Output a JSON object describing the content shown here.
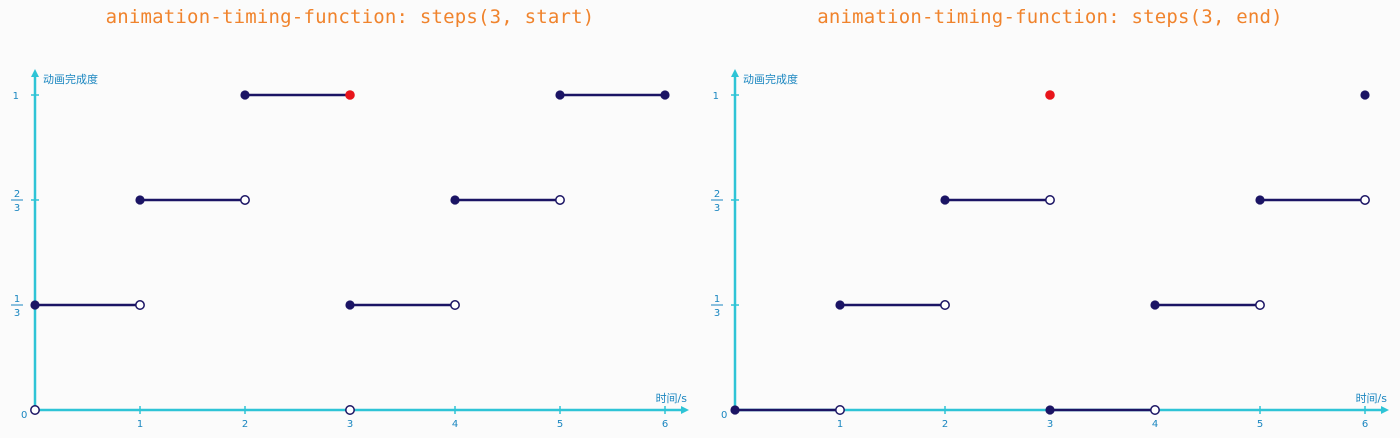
{
  "chart_data": [
    {
      "type": "line",
      "title": "animation-timing-function: steps(3, start)",
      "xlabel": "时间/s",
      "ylabel": "动画完成度",
      "xlim": [
        0,
        6
      ],
      "ylim": [
        0,
        1
      ],
      "x_ticks": [
        "1",
        "2",
        "3",
        "4",
        "5",
        "6"
      ],
      "y_ticks": [
        {
          "num": "1",
          "den": "3",
          "value": 0.3333
        },
        {
          "num": "2",
          "den": "3",
          "value": 0.6667
        },
        {
          "num": "",
          "den": "",
          "label": "1",
          "value": 1
        }
      ],
      "origin_label": "0",
      "segments": [
        {
          "x0": 0,
          "x1": 1,
          "y": 0.3333
        },
        {
          "x0": 1,
          "x1": 2,
          "y": 0.6667
        },
        {
          "x0": 2,
          "x1": 3,
          "y": 1
        },
        {
          "x0": 3,
          "x1": 4,
          "y": 0.3333
        },
        {
          "x0": 4,
          "x1": 5,
          "y": 0.6667
        },
        {
          "x0": 5,
          "x1": 6,
          "y": 1
        }
      ],
      "points": [
        {
          "x": 0,
          "y": 0,
          "style": "open"
        },
        {
          "x": 0,
          "y": 0.3333,
          "style": "filled"
        },
        {
          "x": 1,
          "y": 0.3333,
          "style": "open"
        },
        {
          "x": 1,
          "y": 0.6667,
          "style": "filled"
        },
        {
          "x": 2,
          "y": 0.6667,
          "style": "open"
        },
        {
          "x": 2,
          "y": 1,
          "style": "filled"
        },
        {
          "x": 3,
          "y": 1,
          "style": "red"
        },
        {
          "x": 3,
          "y": 0,
          "style": "open"
        },
        {
          "x": 3,
          "y": 0.3333,
          "style": "filled"
        },
        {
          "x": 4,
          "y": 0.3333,
          "style": "open"
        },
        {
          "x": 4,
          "y": 0.6667,
          "style": "filled"
        },
        {
          "x": 5,
          "y": 0.6667,
          "style": "open"
        },
        {
          "x": 5,
          "y": 1,
          "style": "filled"
        },
        {
          "x": 6,
          "y": 1,
          "style": "filled"
        }
      ]
    },
    {
      "type": "line",
      "title": "animation-timing-function: steps(3, end)",
      "xlabel": "时间/s",
      "ylabel": "动画完成度",
      "xlim": [
        0,
        6
      ],
      "ylim": [
        0,
        1
      ],
      "x_ticks": [
        "1",
        "2",
        "3",
        "4",
        "5",
        "6"
      ],
      "y_ticks": [
        {
          "num": "1",
          "den": "3",
          "value": 0.3333
        },
        {
          "num": "2",
          "den": "3",
          "value": 0.6667
        },
        {
          "num": "",
          "den": "",
          "label": "1",
          "value": 1
        }
      ],
      "origin_label": "0",
      "segments": [
        {
          "x0": 0,
          "x1": 1,
          "y": 0
        },
        {
          "x0": 1,
          "x1": 2,
          "y": 0.3333
        },
        {
          "x0": 2,
          "x1": 3,
          "y": 0.6667
        },
        {
          "x0": 3,
          "x1": 4,
          "y": 0
        },
        {
          "x0": 4,
          "x1": 5,
          "y": 0.3333
        },
        {
          "x0": 5,
          "x1": 6,
          "y": 0.6667
        }
      ],
      "points": [
        {
          "x": 0,
          "y": 0,
          "style": "filled"
        },
        {
          "x": 1,
          "y": 0,
          "style": "open"
        },
        {
          "x": 1,
          "y": 0.3333,
          "style": "filled"
        },
        {
          "x": 2,
          "y": 0.3333,
          "style": "open"
        },
        {
          "x": 2,
          "y": 0.6667,
          "style": "filled"
        },
        {
          "x": 3,
          "y": 0.6667,
          "style": "open"
        },
        {
          "x": 3,
          "y": 1,
          "style": "red"
        },
        {
          "x": 3,
          "y": 0,
          "style": "filled"
        },
        {
          "x": 4,
          "y": 0,
          "style": "open"
        },
        {
          "x": 4,
          "y": 0.3333,
          "style": "filled"
        },
        {
          "x": 5,
          "y": 0.3333,
          "style": "open"
        },
        {
          "x": 5,
          "y": 0.6667,
          "style": "filled"
        },
        {
          "x": 6,
          "y": 0.6667,
          "style": "open"
        },
        {
          "x": 6,
          "y": 1,
          "style": "filled"
        }
      ]
    }
  ],
  "colors": {
    "title": "#f0832c",
    "axis": "#2ec4d6",
    "axis_text": "#1a86c0",
    "line": "#1b1464",
    "highlight": "#e8141b",
    "background": "#fbfbfb"
  }
}
